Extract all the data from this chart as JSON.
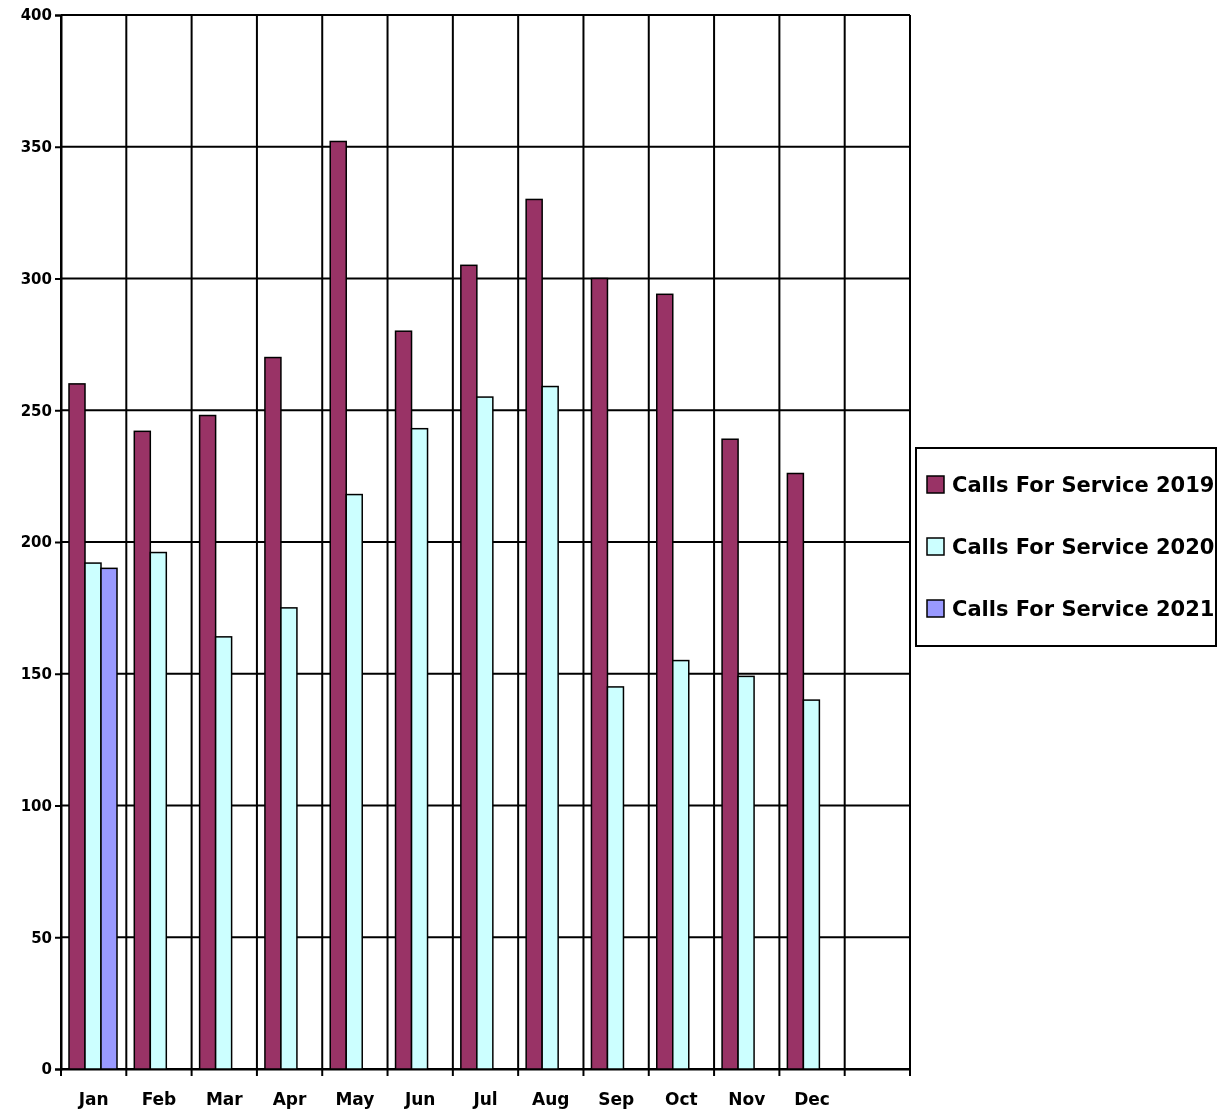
{
  "chart_data": {
    "type": "bar",
    "categories": [
      "Jan",
      "Feb",
      "Mar",
      "Apr",
      "May",
      "Jun",
      "Jul",
      "Aug",
      "Sep",
      "Oct",
      "Nov",
      "Dec",
      null
    ],
    "series": [
      {
        "name": "Calls For Service 2019",
        "color": "#993366",
        "values": [
          260,
          242,
          248,
          270,
          352,
          280,
          305,
          330,
          300,
          294,
          239,
          226,
          null
        ]
      },
      {
        "name": "Calls For Service 2020",
        "color": "#ccffff",
        "values": [
          192,
          196,
          164,
          175,
          218,
          243,
          255,
          259,
          145,
          155,
          149,
          140,
          null
        ]
      },
      {
        "name": "Calls For Service 2021",
        "color": "#9999ff",
        "values": [
          190,
          null,
          null,
          null,
          null,
          null,
          null,
          null,
          null,
          null,
          null,
          null,
          null
        ]
      }
    ],
    "ylim": [
      0,
      400
    ],
    "yticks": [
      0,
      50,
      100,
      150,
      200,
      250,
      300,
      350,
      400
    ],
    "grid": true,
    "legend": "right"
  }
}
